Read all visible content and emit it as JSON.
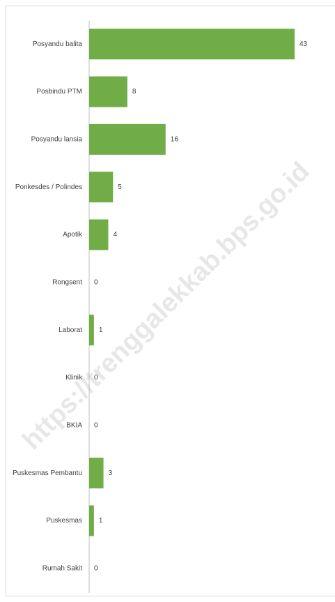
{
  "chart_data": {
    "type": "barh",
    "categories": [
      "Posyandu balita",
      "Posbindu PTM",
      "Posyandu lansia",
      "Ponkesdes / Polindes",
      "Apotik",
      "Rongsent",
      "Laborat",
      "Klinik",
      "BKIA",
      "Puskesmas Pembantu",
      "Puskesmas",
      "Rumah Sakit"
    ],
    "values": [
      43,
      8,
      16,
      5,
      4,
      0,
      1,
      0,
      0,
      3,
      1,
      0
    ],
    "color": "#70ad47",
    "watermark": "https://trenggalekkab.bps.go.id"
  }
}
